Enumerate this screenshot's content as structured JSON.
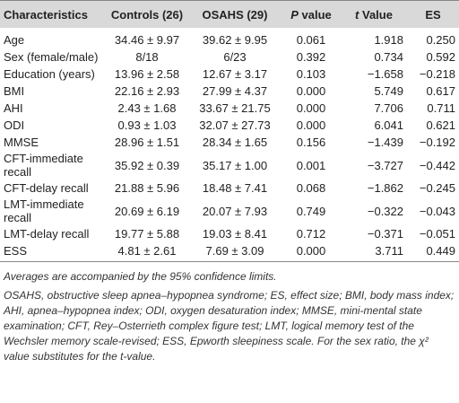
{
  "table": {
    "header": [
      "Characteristics",
      "Controls (26)",
      "OSAHS (29)",
      "P value",
      "t Value",
      "ES"
    ],
    "rows": [
      [
        "Age",
        "34.46 ± 9.97",
        "39.62 ± 9.95",
        "0.061",
        "1.918",
        "0.250"
      ],
      [
        "Sex (female/male)",
        "8/18",
        "6/23",
        "0.392",
        "0.734",
        "0.592"
      ],
      [
        "Education (years)",
        "13.96 ± 2.58",
        "12.67 ± 3.17",
        "0.103",
        "−1.658",
        "−0.218"
      ],
      [
        "BMI",
        "22.16 ± 2.93",
        "27.99 ± 4.37",
        "0.000",
        "5.749",
        "0.617"
      ],
      [
        "AHI",
        "2.43 ± 1.68",
        "33.67 ± 21.75",
        "0.000",
        "7.706",
        "0.711"
      ],
      [
        "ODI",
        "0.93 ± 1.03",
        "32.07 ± 27.73",
        "0.000",
        "6.041",
        "0.621"
      ],
      [
        "MMSE",
        "28.96 ± 1.51",
        "28.34 ± 1.65",
        "0.156",
        "−1.439",
        "−0.192"
      ],
      [
        "CFT-immediate recall",
        "35.92 ± 0.39",
        "35.17 ± 1.00",
        "0.001",
        "−3.727",
        "−0.442"
      ],
      [
        "CFT-delay recall",
        "21.88 ± 5.96",
        "18.48 ± 7.41",
        "0.068",
        "−1.862",
        "−0.245"
      ],
      [
        "LMT-immediate recall",
        "20.69 ± 6.19",
        "20.07 ± 7.93",
        "0.749",
        "−0.322",
        "−0.043"
      ],
      [
        "LMT-delay recall",
        "19.77 ± 5.88",
        "19.03 ± 8.41",
        "0.712",
        "−0.371",
        "−0.051"
      ],
      [
        "ESS",
        "4.81 ± 2.61",
        "7.69 ± 3.09",
        "0.000",
        "3.711",
        "0.449"
      ]
    ]
  },
  "notes": [
    "Averages are accompanied by the 95% confidence limits.",
    "OSAHS, obstructive sleep apnea–hypopnea syndrome; ES, effect size; BMI, body mass index; AHI, apnea–hypopnea index; ODI, oxygen desaturation index; MMSE, mini-mental state examination; CFT, Rey–Osterrieth complex figure test; LMT, logical memory test of the Wechsler memory scale-revised; ESS, Epworth sleepiness scale. For the sex ratio, the χ² value substitutes for the t-value."
  ]
}
